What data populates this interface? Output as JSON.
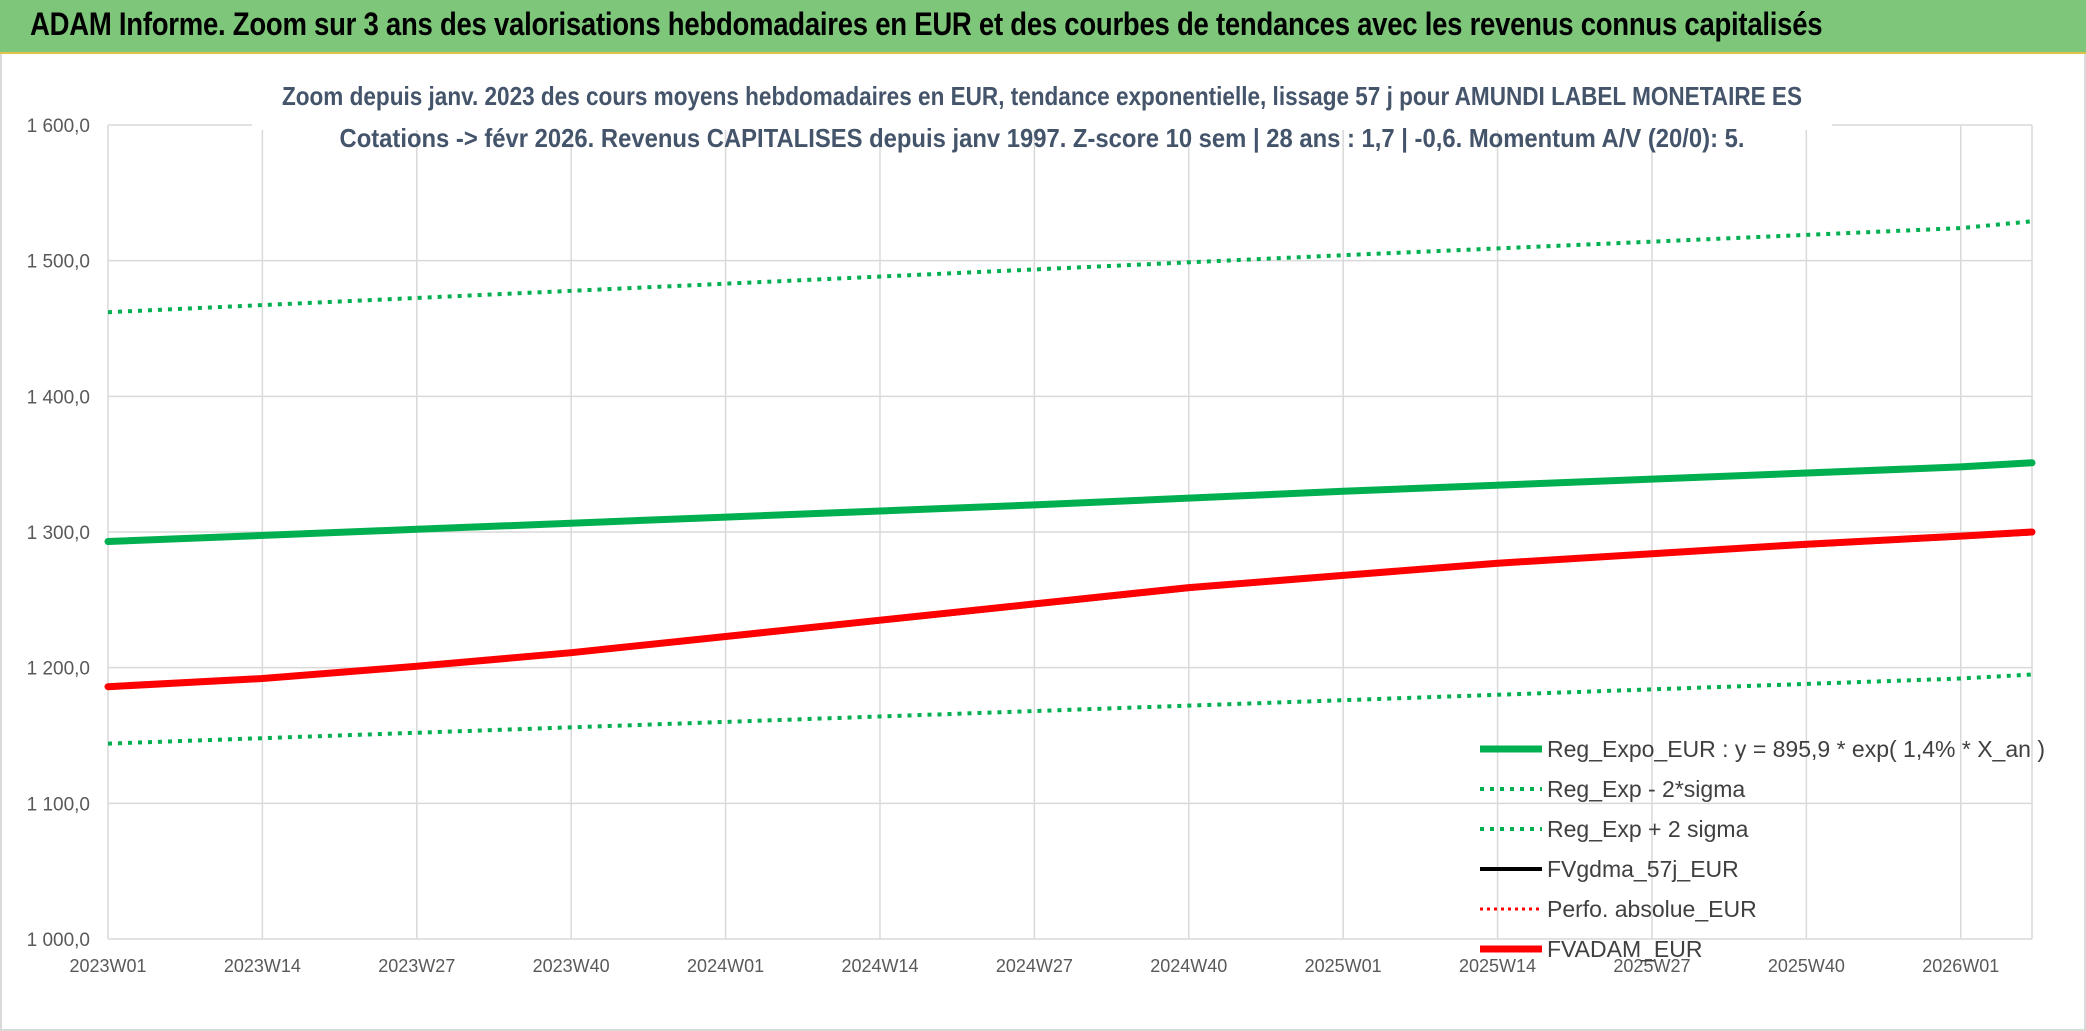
{
  "banner": {
    "title": "ADAM Informe. Zoom sur 3 ans des valorisations hebdomadaires en EUR et des courbes de tendances avec les revenus connus capitalisés",
    "background": "#7dc67a"
  },
  "chart_data": {
    "type": "line",
    "title": "Zoom depuis janv. 2023 des cours moyens hebdomadaires en EUR, tendance exponentielle, lissage 57 j pour AMUNDI LABEL MONETAIRE ES",
    "subtitle": "Cotations -> févr 2026. Revenus CAPITALISES depuis janv 1997. Z-score 10 sem | 28 ans : 1,7 | -0,6. Momentum A/V (20/0): 5.",
    "xlabel": "",
    "ylabel": "",
    "ylim": [
      1000,
      1600
    ],
    "yticks": [
      "1 000,0",
      "1 100,0",
      "1 200,0",
      "1 300,0",
      "1 400,0",
      "1 500,0",
      "1 600,0"
    ],
    "x_ticks": [
      "2023W01",
      "2023W14",
      "2023W27",
      "2023W40",
      "2024W01",
      "2024W14",
      "2024W27",
      "2024W40",
      "2025W01",
      "2025W14",
      "2025W27",
      "2025W40",
      "2026W01"
    ],
    "x_end": "2026W07",
    "grid": true,
    "legend_position": "bottom-right",
    "series": [
      {
        "name": "Reg_Expo_EUR : y = 895,9 * exp( 1,4% *  X_an )",
        "color": "#00b050",
        "style": "solid-thick",
        "x": [
          "2023W01",
          "2023W27",
          "2024W01",
          "2024W27",
          "2025W01",
          "2025W27",
          "2026W01",
          "2026W07"
        ],
        "values": [
          1293,
          1302,
          1311,
          1320,
          1330,
          1339,
          1348,
          1351
        ]
      },
      {
        "name": "Reg_Exp - 2*sigma",
        "color": "#00b050",
        "style": "dotted",
        "x": [
          "2023W01",
          "2024W01",
          "2025W01",
          "2026W01",
          "2026W07"
        ],
        "values": [
          1144,
          1160,
          1176,
          1192,
          1195
        ]
      },
      {
        "name": "Reg_Exp + 2 sigma",
        "color": "#00b050",
        "style": "dotted",
        "x": [
          "2023W01",
          "2024W01",
          "2025W01",
          "2026W01",
          "2026W07"
        ],
        "values": [
          1462,
          1483,
          1504,
          1524,
          1529
        ]
      },
      {
        "name": "FVgdma_57j_EUR",
        "color": "#000000",
        "style": "solid",
        "x": [
          "2023W01",
          "2023W14",
          "2023W27",
          "2023W40",
          "2024W01",
          "2024W14",
          "2024W27",
          "2024W40",
          "2025W01",
          "2025W14",
          "2025W27",
          "2025W40",
          "2026W01",
          "2026W07"
        ],
        "values": [
          1186,
          1192,
          1201,
          1211,
          1222,
          1234,
          1246,
          1258,
          1268,
          1277,
          1284,
          1290,
          1296,
          1299
        ]
      },
      {
        "name": "Perfo. absolue_EUR",
        "color": "#ff0000",
        "style": "dotted-thin",
        "x": [
          "2023W01",
          "2023W14",
          "2023W27",
          "2023W40",
          "2024W01",
          "2024W14",
          "2024W27",
          "2024W40",
          "2025W01",
          "2025W14",
          "2025W27",
          "2025W40",
          "2026W01",
          "2026W07"
        ],
        "values": [
          1186,
          1192,
          1201,
          1211,
          1223,
          1235,
          1247,
          1259,
          1268,
          1277,
          1284,
          1291,
          1297,
          1300
        ]
      },
      {
        "name": "FVADAM_EUR",
        "color": "#ff0000",
        "style": "solid-thick",
        "x": [
          "2023W01",
          "2023W14",
          "2023W27",
          "2023W40",
          "2024W01",
          "2024W14",
          "2024W27",
          "2024W40",
          "2025W01",
          "2025W14",
          "2025W27",
          "2025W40",
          "2026W01",
          "2026W07"
        ],
        "values": [
          1186,
          1192,
          1201,
          1211,
          1223,
          1235,
          1247,
          1259,
          1268,
          1277,
          1284,
          1291,
          1297,
          1300
        ]
      }
    ]
  }
}
